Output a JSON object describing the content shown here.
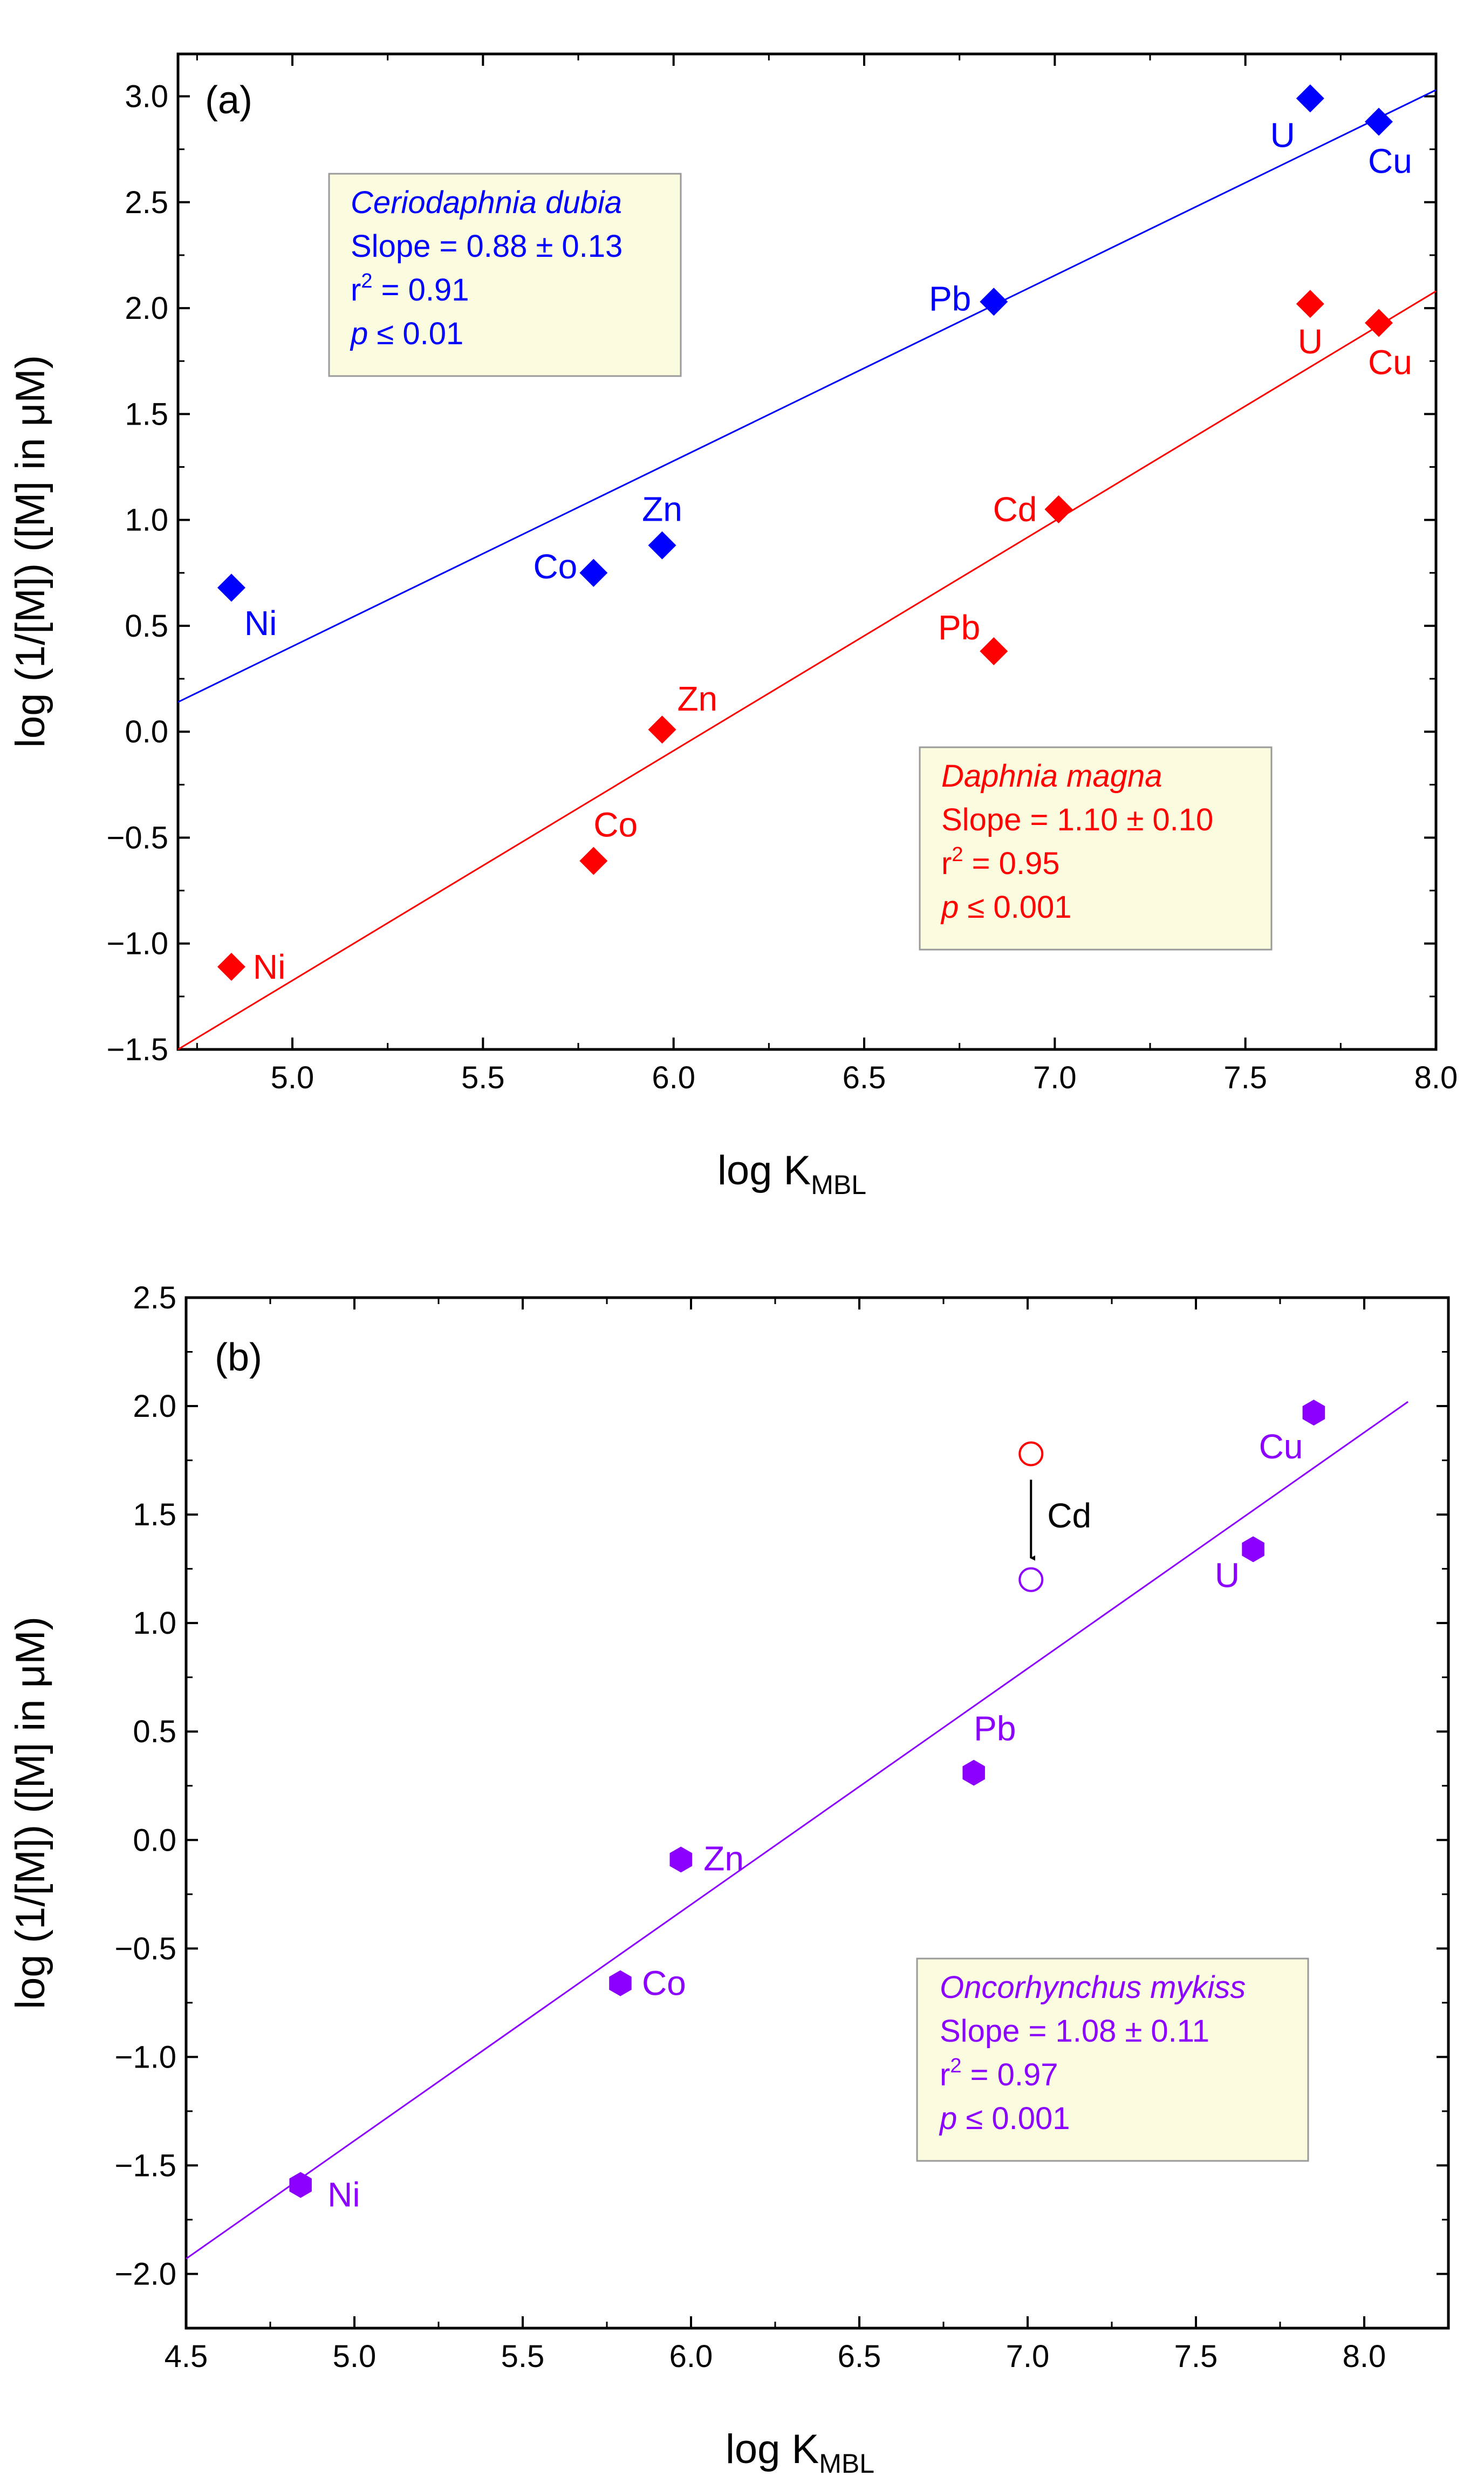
{
  "chart_data": [
    {
      "type": "scatter",
      "panel_label": "(a)",
      "xlabel": "log K",
      "xlabel_sub": "MBL",
      "ylabel": "log (1/[M]) ([M] in μM)",
      "xlim": [
        4.7,
        8.0
      ],
      "ylim": [
        -1.5,
        3.2
      ],
      "xticks": [
        "5.0",
        "5.5",
        "6.0",
        "6.5",
        "7.0",
        "7.5",
        "8.0"
      ],
      "yticks": [
        "−1.5",
        "−1.0",
        "−0.5",
        "0.0",
        "0.5",
        "1.0",
        "1.5",
        "2.0",
        "2.5",
        "3.0"
      ],
      "series": [
        {
          "name": "Ceriodaphnia dubia",
          "color": "#0000ff",
          "marker": "diamond",
          "points": [
            {
              "label": "Ni",
              "x": 4.84,
              "y": 0.68
            },
            {
              "label": "Co",
              "x": 5.79,
              "y": 0.75
            },
            {
              "label": "Zn",
              "x": 5.97,
              "y": 0.88
            },
            {
              "label": "Pb",
              "x": 6.84,
              "y": 2.03
            },
            {
              "label": "U",
              "x": 7.67,
              "y": 2.99
            },
            {
              "label": "Cu",
              "x": 7.85,
              "y": 2.88
            }
          ],
          "fit": {
            "x": [
              4.7,
              8.0
            ],
            "y": [
              0.14,
              3.03
            ]
          },
          "stats": {
            "name": "Ceriodaphnia dubia",
            "slope": "Slope = 0.88 ± 0.13",
            "r2_prefix": "r",
            "r2_sup": "2",
            "r2_value": " = 0.91",
            "p_letter": "p",
            "p_value": "≤ 0.01"
          }
        },
        {
          "name": "Daphnia magna",
          "color": "#ff0000",
          "marker": "diamond",
          "points": [
            {
              "label": "Ni",
              "x": 4.84,
              "y": -1.11
            },
            {
              "label": "Co",
              "x": 5.79,
              "y": -0.61
            },
            {
              "label": "Zn",
              "x": 5.97,
              "y": 0.01
            },
            {
              "label": "Pb",
              "x": 6.84,
              "y": 0.38
            },
            {
              "label": "Cd",
              "x": 7.01,
              "y": 1.05
            },
            {
              "label": "U",
              "x": 7.67,
              "y": 2.02
            },
            {
              "label": "Cu",
              "x": 7.85,
              "y": 1.93
            }
          ],
          "fit": {
            "x": [
              4.7,
              8.0
            ],
            "y": [
              -1.5,
              2.08
            ]
          },
          "stats": {
            "name": "Daphnia magna",
            "slope": "Slope = 1.10 ± 0.10",
            "r2_prefix": "r",
            "r2_sup": "2",
            "r2_value": " = 0.95",
            "p_letter": "p",
            "p_value": "≤ 0.001"
          }
        }
      ]
    },
    {
      "type": "scatter",
      "panel_label": "(b)",
      "xlabel": "log K",
      "xlabel_sub": "MBL",
      "ylabel": "log (1/[M]) ([M] in μM)",
      "xlim": [
        4.5,
        8.25
      ],
      "ylim": [
        -2.25,
        2.5
      ],
      "xticks": [
        "4.5",
        "5.0",
        "5.5",
        "6.0",
        "6.5",
        "7.0",
        "7.5",
        "8.0"
      ],
      "yticks": [
        "−2.0",
        "−1.5",
        "−1.0",
        "−0.5",
        "0.0",
        "0.5",
        "1.0",
        "1.5",
        "2.0",
        "2.5"
      ],
      "series": [
        {
          "name": "Oncorhynchus mykiss",
          "color": "#8b00ff",
          "marker": "hexagon",
          "points": [
            {
              "label": "Ni",
              "x": 4.84,
              "y": -1.59
            },
            {
              "label": "Co",
              "x": 5.79,
              "y": -0.66
            },
            {
              "label": "Zn",
              "x": 5.97,
              "y": -0.09
            },
            {
              "label": "Pb",
              "x": 6.84,
              "y": 0.31
            },
            {
              "label": "U",
              "x": 7.67,
              "y": 1.34
            },
            {
              "label": "Cu",
              "x": 7.85,
              "y": 1.97
            }
          ],
          "fit": {
            "x": [
              4.5,
              8.13
            ],
            "y": [
              -1.93,
              2.02
            ]
          },
          "stats": {
            "name": "Oncorhynchus mykiss",
            "slope": "Slope = 1.08 ± 0.11",
            "r2_prefix": "r",
            "r2_sup": "2",
            "r2_value": " = 0.97",
            "p_letter": "p",
            "p_value": "≤ 0.001"
          }
        }
      ],
      "outlier_shift": {
        "label": "Cd",
        "x": 7.01,
        "y_from": 1.78,
        "y_to": 1.2,
        "from_color": "#ff0000",
        "to_color": "#8b00ff",
        "arrow_color": "#000000"
      }
    }
  ]
}
